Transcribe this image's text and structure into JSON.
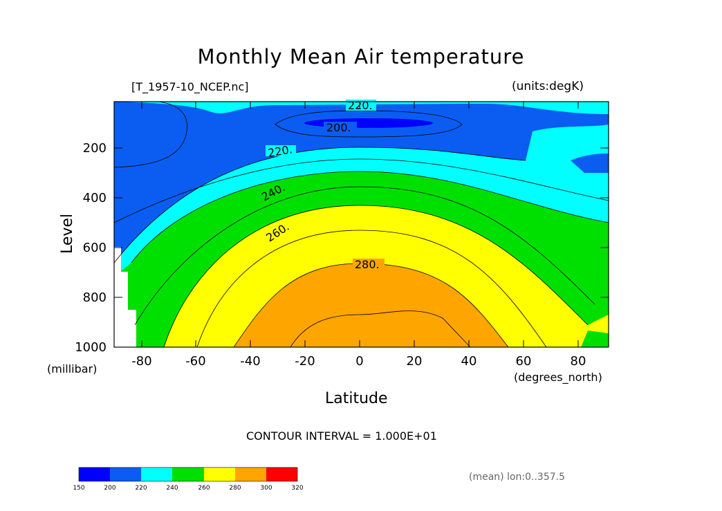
{
  "title": "Monthly Mean Air temperature",
  "file_label": "[T_1957-10_NCEP.nc]",
  "units_label": "(units:degK)",
  "footer": {
    "contour_interval": "CONTOUR INTERVAL = 1.000E+01",
    "mean_note": "(mean) lon:0..357.5"
  },
  "chart_data": {
    "type": "contour",
    "title": "Monthly Mean Air temperature",
    "xlabel": "Latitude",
    "x_units": "(degrees_north)",
    "ylabel": "Level",
    "y_units": "(millibar)",
    "xlim": [
      -90,
      90
    ],
    "ylim": [
      1000,
      0
    ],
    "x_ticks": [
      "-80",
      "-60",
      "-40",
      "-20",
      "0",
      "20",
      "40",
      "60",
      "80"
    ],
    "y_ticks": [
      "200",
      "400",
      "600",
      "800",
      "1000"
    ],
    "contour_interval": 10,
    "contour_labels": [
      "220.",
      "200.",
      "220.",
      "240.",
      "260.",
      "280."
    ],
    "colorbar": {
      "levels": [
        "150",
        "200",
        "220",
        "240",
        "260",
        "280",
        "300",
        "320"
      ],
      "colors": [
        "#0000ff",
        "#0a5df0",
        "#00ffff",
        "#00e000",
        "#ffff00",
        "#ffa500",
        "#ff0000"
      ]
    }
  }
}
